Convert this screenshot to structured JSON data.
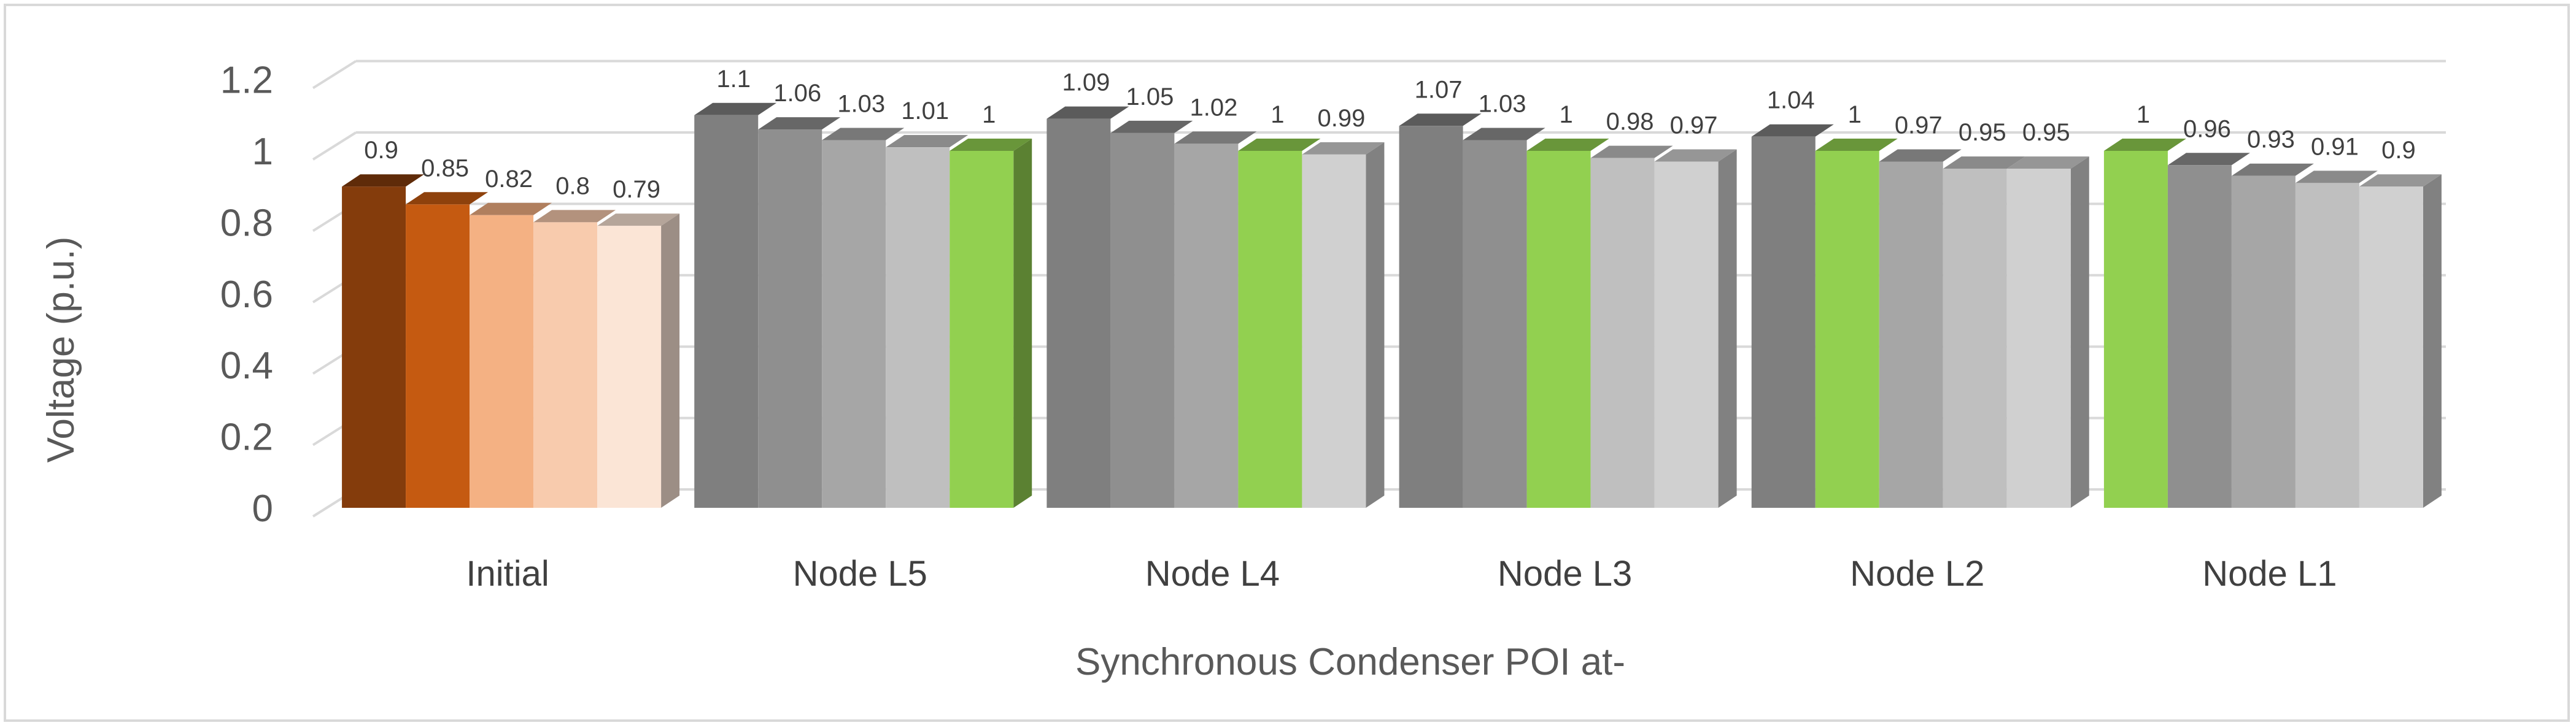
{
  "chart_data": {
    "type": "bar",
    "style": "3d-clustered-column",
    "title": "",
    "xlabel": "Synchronous Condenser POI at-",
    "ylabel": "Voltage (p.u.)",
    "ylim": [
      0,
      1.2
    ],
    "yticks": [
      "0",
      "0.2",
      "0.4",
      "0.6",
      "0.8",
      "1",
      "1.2"
    ],
    "grid": true,
    "legend": "none",
    "groups": [
      {
        "category": "Initial",
        "values": [
          0.9,
          0.85,
          0.82,
          0.8,
          0.79
        ],
        "labels": [
          "0.9",
          "0.85",
          "0.82",
          "0.8",
          "0.79"
        ],
        "colors": [
          "#843c0c",
          "#c55a11",
          "#f4b183",
          "#f8cbad",
          "#fbe5d6"
        ]
      },
      {
        "category": "Node L5",
        "values": [
          1.1,
          1.06,
          1.03,
          1.01,
          1
        ],
        "labels": [
          "1.1",
          "1.06",
          "1.03",
          "1.01",
          "1"
        ],
        "colors": [
          "#7f7f7f",
          "#8f8f8f",
          "#a6a6a6",
          "#bfbfbf",
          "#92d050"
        ]
      },
      {
        "category": "Node L4",
        "values": [
          1.09,
          1.05,
          1.02,
          1,
          0.99
        ],
        "labels": [
          "1.09",
          "1.05",
          "1.02",
          "1",
          "0.99"
        ],
        "colors": [
          "#7f7f7f",
          "#8f8f8f",
          "#a6a6a6",
          "#92d050",
          "#d0d0d0"
        ]
      },
      {
        "category": "Node L3",
        "values": [
          1.07,
          1.03,
          1,
          0.98,
          0.97
        ],
        "labels": [
          "1.07",
          "1.03",
          "1",
          "0.98",
          "0.97"
        ],
        "colors": [
          "#7f7f7f",
          "#8f8f8f",
          "#92d050",
          "#bfbfbf",
          "#d0d0d0"
        ]
      },
      {
        "category": "Node L2",
        "values": [
          1.04,
          1,
          0.97,
          0.95,
          0.95
        ],
        "labels": [
          "1.04",
          "1",
          "0.97",
          "0.95",
          "0.95"
        ],
        "colors": [
          "#7f7f7f",
          "#92d050",
          "#a6a6a6",
          "#bfbfbf",
          "#d0d0d0"
        ]
      },
      {
        "category": "Node L1",
        "values": [
          1,
          0.96,
          0.93,
          0.91,
          0.9
        ],
        "labels": [
          "1",
          "0.96",
          "0.93",
          "0.91",
          "0.9"
        ],
        "colors": [
          "#92d050",
          "#8f8f8f",
          "#a6a6a6",
          "#bfbfbf",
          "#d0d0d0"
        ]
      }
    ]
  }
}
